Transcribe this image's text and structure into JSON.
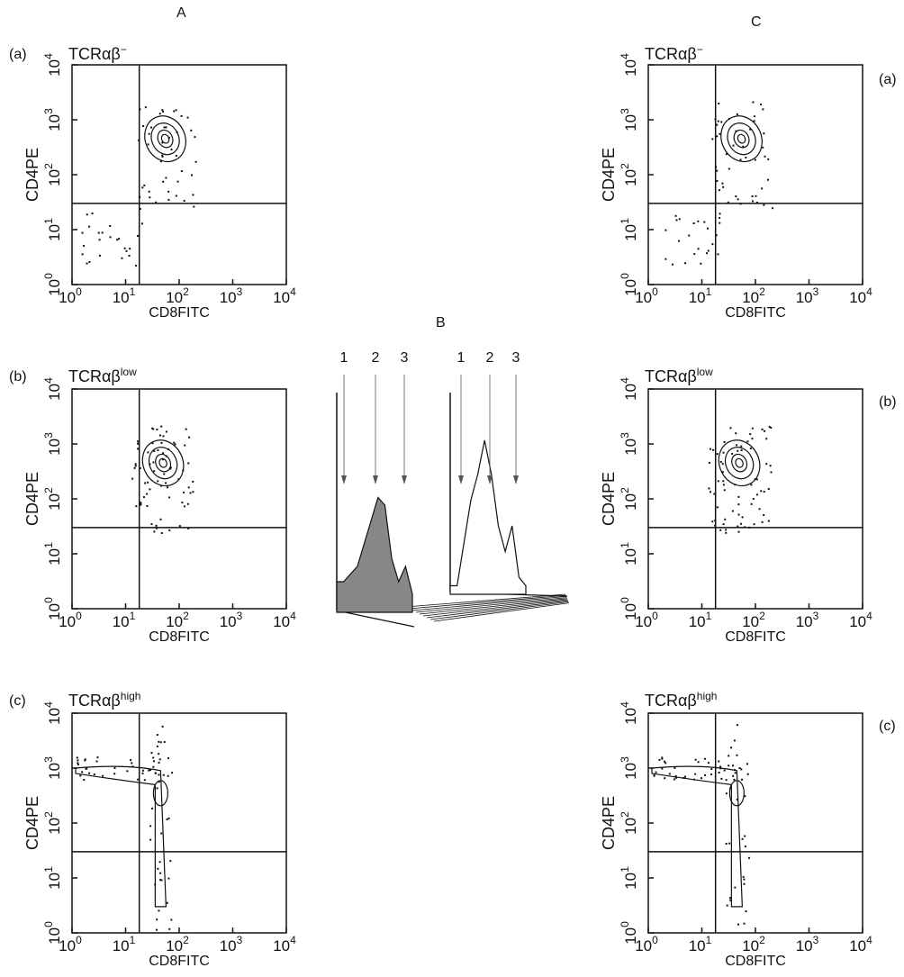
{
  "figure": {
    "col_a": "A",
    "col_b": "B",
    "col_c": "C"
  },
  "chart_data": [
    {
      "type": "scatter",
      "panel": "A-a",
      "tag": "(a)",
      "title": {
        "base": "TCRαβ",
        "sup": "−"
      },
      "xlabel": "CD8FITC",
      "ylabel": "CD4PE",
      "scale": "log",
      "xlim": [
        1,
        10000
      ],
      "ylim": [
        1,
        10000
      ],
      "x_ticks": [
        {
          "base": "10",
          "exp": "0"
        },
        {
          "base": "10",
          "exp": "1"
        },
        {
          "base": "10",
          "exp": "2"
        },
        {
          "base": "10",
          "exp": "3"
        },
        {
          "base": "10",
          "exp": "4"
        }
      ],
      "y_ticks": [
        {
          "base": "10",
          "exp": "0"
        },
        {
          "base": "10",
          "exp": "1"
        },
        {
          "base": "10",
          "exp": "2"
        },
        {
          "base": "10",
          "exp": "3"
        },
        {
          "base": "10",
          "exp": "4"
        }
      ],
      "gates": {
        "x": 18,
        "y": 30
      },
      "population_center": [
        55,
        450
      ]
    },
    {
      "type": "scatter",
      "panel": "A-b",
      "tag": "(b)",
      "title": {
        "base": "TCRαβ",
        "sup": "low"
      },
      "xlabel": "CD8FITC",
      "ylabel": "CD4PE",
      "scale": "log",
      "xlim": [
        1,
        10000
      ],
      "ylim": [
        1,
        10000
      ],
      "x_ticks": [
        {
          "base": "10",
          "exp": "0"
        },
        {
          "base": "10",
          "exp": "1"
        },
        {
          "base": "10",
          "exp": "2"
        },
        {
          "base": "10",
          "exp": "3"
        },
        {
          "base": "10",
          "exp": "4"
        }
      ],
      "y_ticks": [
        {
          "base": "10",
          "exp": "0"
        },
        {
          "base": "10",
          "exp": "1"
        },
        {
          "base": "10",
          "exp": "2"
        },
        {
          "base": "10",
          "exp": "3"
        },
        {
          "base": "10",
          "exp": "4"
        }
      ],
      "gates": {
        "x": 18,
        "y": 30
      },
      "population_center": [
        50,
        450
      ]
    },
    {
      "type": "scatter",
      "panel": "A-c",
      "tag": "(c)",
      "title": {
        "base": "TCRαβ",
        "sup": "high"
      },
      "xlabel": "CD8FITC",
      "ylabel": "CD4PE",
      "scale": "log",
      "xlim": [
        1,
        10000
      ],
      "ylim": [
        1,
        10000
      ],
      "x_ticks": [
        {
          "base": "10",
          "exp": "0"
        },
        {
          "base": "10",
          "exp": "1"
        },
        {
          "base": "10",
          "exp": "2"
        },
        {
          "base": "10",
          "exp": "3"
        },
        {
          "base": "10",
          "exp": "4"
        }
      ],
      "y_ticks": [
        {
          "base": "10",
          "exp": "0"
        },
        {
          "base": "10",
          "exp": "1"
        },
        {
          "base": "10",
          "exp": "2"
        },
        {
          "base": "10",
          "exp": "3"
        },
        {
          "base": "10",
          "exp": "4"
        }
      ],
      "gates": {
        "x": 18,
        "y": 30
      },
      "population_center": [
        45,
        300
      ]
    },
    {
      "type": "area",
      "panel": "B",
      "peak_labels": [
        "1",
        "2",
        "3"
      ],
      "series": [
        {
          "fill": "#888888",
          "values": [
            0.2,
            0.2,
            0.25,
            0.3,
            0.45,
            0.6,
            0.75,
            0.7,
            0.35,
            0.2,
            0.3,
            0.12
          ]
        },
        {
          "fill": "#ffffff",
          "values": [
            0.05,
            0.05,
            0.3,
            0.55,
            0.7,
            0.9,
            0.7,
            0.4,
            0.25,
            0.4,
            0.1,
            0.05
          ]
        }
      ]
    },
    {
      "type": "scatter",
      "panel": "C-a",
      "tag": "(a)",
      "title": {
        "base": "TCRαβ",
        "sup": "−"
      },
      "xlabel": "CD8FITC",
      "ylabel": "CD4PE",
      "scale": "log",
      "xlim": [
        1,
        10000
      ],
      "ylim": [
        1,
        10000
      ],
      "x_ticks": [
        {
          "base": "10",
          "exp": "0"
        },
        {
          "base": "10",
          "exp": "1"
        },
        {
          "base": "10",
          "exp": "2"
        },
        {
          "base": "10",
          "exp": "3"
        },
        {
          "base": "10",
          "exp": "4"
        }
      ],
      "y_ticks": [
        {
          "base": "10",
          "exp": "0"
        },
        {
          "base": "10",
          "exp": "1"
        },
        {
          "base": "10",
          "exp": "2"
        },
        {
          "base": "10",
          "exp": "3"
        },
        {
          "base": "10",
          "exp": "4"
        }
      ],
      "gates": {
        "x": 18,
        "y": 30
      },
      "population_center": [
        55,
        450
      ]
    },
    {
      "type": "scatter",
      "panel": "C-b",
      "tag": "(b)",
      "title": {
        "base": "TCRαβ",
        "sup": "low"
      },
      "xlabel": "CD8FITC",
      "ylabel": "CD4PE",
      "scale": "log",
      "xlim": [
        1,
        10000
      ],
      "ylim": [
        1,
        10000
      ],
      "x_ticks": [
        {
          "base": "10",
          "exp": "0"
        },
        {
          "base": "10",
          "exp": "1"
        },
        {
          "base": "10",
          "exp": "2"
        },
        {
          "base": "10",
          "exp": "3"
        },
        {
          "base": "10",
          "exp": "4"
        }
      ],
      "y_ticks": [
        {
          "base": "10",
          "exp": "0"
        },
        {
          "base": "10",
          "exp": "1"
        },
        {
          "base": "10",
          "exp": "2"
        },
        {
          "base": "10",
          "exp": "3"
        },
        {
          "base": "10",
          "exp": "4"
        }
      ],
      "gates": {
        "x": 18,
        "y": 30
      },
      "population_center": [
        50,
        450
      ]
    },
    {
      "type": "scatter",
      "panel": "C-c",
      "tag": "(c)",
      "title": {
        "base": "TCRαβ",
        "sup": "high"
      },
      "xlabel": "CD8FITC",
      "ylabel": "CD4PE",
      "scale": "log",
      "xlim": [
        1,
        10000
      ],
      "ylim": [
        1,
        10000
      ],
      "x_ticks": [
        {
          "base": "10",
          "exp": "0"
        },
        {
          "base": "10",
          "exp": "1"
        },
        {
          "base": "10",
          "exp": "2"
        },
        {
          "base": "10",
          "exp": "3"
        },
        {
          "base": "10",
          "exp": "4"
        }
      ],
      "y_ticks": [
        {
          "base": "10",
          "exp": "0"
        },
        {
          "base": "10",
          "exp": "1"
        },
        {
          "base": "10",
          "exp": "2"
        },
        {
          "base": "10",
          "exp": "3"
        },
        {
          "base": "10",
          "exp": "4"
        }
      ],
      "gates": {
        "x": 18,
        "y": 30
      },
      "population_center": [
        45,
        300
      ]
    }
  ]
}
